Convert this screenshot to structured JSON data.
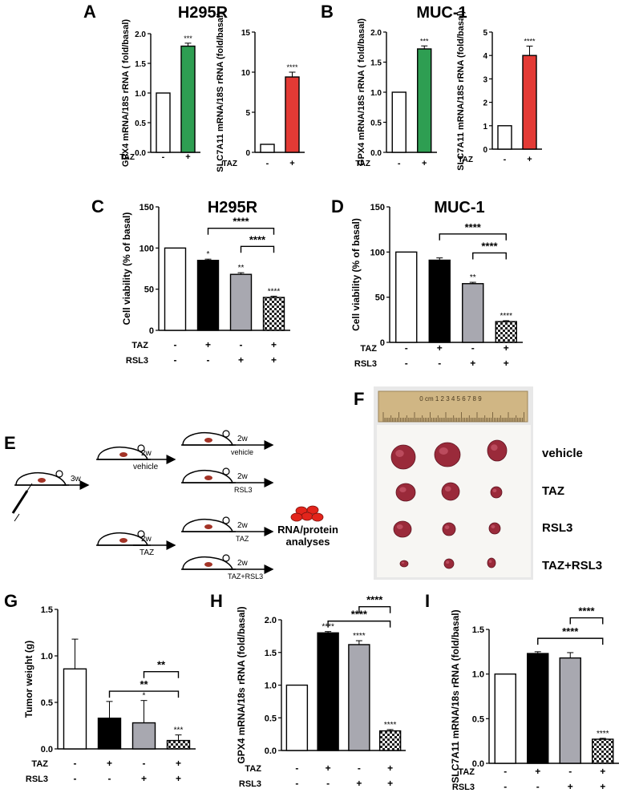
{
  "panels": {
    "A": {
      "letter": "A",
      "title": "H295R"
    },
    "B": {
      "letter": "B",
      "title": "MUC-1"
    },
    "C": {
      "letter": "C",
      "title": "H295R"
    },
    "D": {
      "letter": "D",
      "title": "MUC-1"
    },
    "E": {
      "letter": "E"
    },
    "F": {
      "letter": "F"
    },
    "G": {
      "letter": "G"
    },
    "H": {
      "letter": "H"
    },
    "I": {
      "letter": "I"
    }
  },
  "schematic": {
    "arrow_first": "3w",
    "rows": [
      {
        "duration": "2w",
        "treatment": "vehicle"
      },
      {
        "duration": "2w",
        "treatment": "RSL3"
      },
      {
        "duration": "2w",
        "treatment": "TAZ"
      },
      {
        "duration": "2w",
        "treatment": "TAZ+RSL3"
      }
    ],
    "pre_treatments": [
      {
        "duration": "2w",
        "treatment": "vehicle"
      },
      {
        "duration": "2w",
        "treatment": "TAZ"
      }
    ],
    "result_line1": "RNA/protein",
    "result_line2": "analyses",
    "colors": {
      "cells": "#e3241b",
      "tumor": "#a33326"
    }
  },
  "photo": {
    "ruler_label": "0 cm 1 2 3 4 5 6 7 8 9",
    "row_labels": [
      "vehicle",
      "TAZ",
      "RSL3",
      "TAZ+RSL3"
    ],
    "colors": {
      "background": "#e8e8e8",
      "cloth": "#f7f6f3",
      "ruler": "#d0b684",
      "tumor": "#9a2a3a"
    }
  },
  "legend_colors": {
    "white": "#ffffff",
    "black": "#000000",
    "gray": "#a8a8b0",
    "green": "#2e9e52",
    "red": "#e33a35"
  },
  "chart_data": [
    {
      "id": "A1",
      "type": "bar",
      "ylabel": "GPX4 mRNA/18S rRNA ( fold/basal)",
      "ylim": [
        0,
        2.0
      ],
      "yticks": [
        0.0,
        0.5,
        1.0,
        1.5,
        2.0
      ],
      "tick_decimals": 1,
      "row_labels": [
        "TAZ"
      ],
      "treatments": [
        [
          "-",
          "+"
        ]
      ],
      "values": [
        1.0,
        1.79
      ],
      "errors": [
        0,
        0.05
      ],
      "colors": [
        "white",
        "green"
      ],
      "sig": [
        "",
        "***"
      ],
      "brackets": []
    },
    {
      "id": "A2",
      "type": "bar",
      "ylabel": "SLC7A11 mRNA/18S rRNA (fold/basal)",
      "ylim": [
        0,
        15
      ],
      "yticks": [
        0,
        5,
        10,
        15
      ],
      "tick_decimals": 0,
      "row_labels": [
        "TAZ"
      ],
      "treatments": [
        [
          "-",
          "+"
        ]
      ],
      "values": [
        1.0,
        9.4
      ],
      "errors": [
        0,
        0.6
      ],
      "colors": [
        "white",
        "red"
      ],
      "sig": [
        "",
        "****"
      ],
      "brackets": []
    },
    {
      "id": "B1",
      "type": "bar",
      "ylabel": "GPX4 mRNA/18S rRNA ( fold/basal)",
      "ylim": [
        0,
        2.0
      ],
      "yticks": [
        0.0,
        0.5,
        1.0,
        1.5,
        2.0
      ],
      "tick_decimals": 1,
      "row_labels": [
        "TAZ"
      ],
      "treatments": [
        [
          "-",
          "+"
        ]
      ],
      "values": [
        1.0,
        1.72
      ],
      "errors": [
        0,
        0.05
      ],
      "colors": [
        "white",
        "green"
      ],
      "sig": [
        "",
        "***"
      ],
      "brackets": []
    },
    {
      "id": "B2",
      "type": "bar",
      "ylabel": "SLC7A11 mRNA/18S rRNA (fold/basal)",
      "ylim": [
        0,
        5
      ],
      "yticks": [
        0,
        1,
        2,
        3,
        4,
        5
      ],
      "tick_decimals": 0,
      "row_labels": [
        "TAZ"
      ],
      "treatments": [
        [
          "-",
          "+"
        ]
      ],
      "values": [
        1.0,
        4.0
      ],
      "errors": [
        0,
        0.4
      ],
      "colors": [
        "white",
        "red"
      ],
      "sig": [
        "",
        "****"
      ],
      "brackets": []
    },
    {
      "id": "C",
      "type": "bar",
      "ylabel": "Cell viability (% of basal)",
      "ylim": [
        0,
        150
      ],
      "yticks": [
        0,
        50,
        100,
        150
      ],
      "tick_decimals": 0,
      "row_labels": [
        "TAZ",
        "RSL3"
      ],
      "treatments": [
        [
          "-",
          "+",
          "-",
          "+"
        ],
        [
          "-",
          "-",
          "+",
          "+"
        ]
      ],
      "values": [
        100,
        85,
        68,
        40
      ],
      "errors": [
        0,
        1.5,
        2,
        1.5
      ],
      "colors": [
        "white",
        "black",
        "gray",
        "checker"
      ],
      "sig": [
        "",
        "*",
        "**",
        "****"
      ],
      "brackets": [
        {
          "from": 1,
          "to": 3,
          "label": "****",
          "level": 124
        },
        {
          "from": 2,
          "to": 3,
          "label": "****",
          "level": 102
        }
      ]
    },
    {
      "id": "D",
      "type": "bar",
      "ylabel": "Cell viability (% of basal)",
      "ylim": [
        0,
        150
      ],
      "yticks": [
        0,
        50,
        100,
        150
      ],
      "tick_decimals": 0,
      "row_labels": [
        "TAZ",
        "RSL3"
      ],
      "treatments": [
        [
          "-",
          "+",
          "-",
          "+"
        ],
        [
          "-",
          "-",
          "+",
          "+"
        ]
      ],
      "values": [
        100,
        91,
        65,
        23
      ],
      "errors": [
        0,
        2.5,
        1.5,
        1
      ],
      "colors": [
        "white",
        "black",
        "gray",
        "checker"
      ],
      "sig": [
        "",
        "",
        "**",
        "****"
      ],
      "brackets": [
        {
          "from": 1,
          "to": 3,
          "label": "****",
          "level": 120
        },
        {
          "from": 2,
          "to": 3,
          "label": "****",
          "level": 99
        }
      ]
    },
    {
      "id": "G",
      "type": "bar",
      "ylabel": "Tumor weight (g)",
      "ylim": [
        0,
        1.5
      ],
      "yticks": [
        0.0,
        0.5,
        1.0,
        1.5
      ],
      "tick_decimals": 1,
      "row_labels": [
        "TAZ",
        "RSL3"
      ],
      "treatments": [
        [
          "-",
          "+",
          "-",
          "+"
        ],
        [
          "-",
          "-",
          "+",
          "+"
        ]
      ],
      "values": [
        0.86,
        0.33,
        0.28,
        0.09
      ],
      "errors": [
        0.32,
        0.18,
        0.24,
        0.06
      ],
      "colors": [
        "white",
        "black",
        "gray",
        "checker"
      ],
      "sig": [
        "",
        "",
        "*",
        "***"
      ],
      "brackets": [
        {
          "from": 1,
          "to": 3,
          "label": "**",
          "level": 0.62
        },
        {
          "from": 2,
          "to": 3,
          "label": "**",
          "level": 0.83
        }
      ]
    },
    {
      "id": "H",
      "type": "bar",
      "ylabel": "GPX4 mRNA/18s rRNA (fold/basal)",
      "ylim": [
        0,
        2.0
      ],
      "yticks": [
        0.0,
        0.5,
        1.0,
        1.5,
        2.0
      ],
      "tick_decimals": 1,
      "row_labels": [
        "TAZ",
        "RSL3"
      ],
      "treatments": [
        [
          "-",
          "+",
          "-",
          "+"
        ],
        [
          "-",
          "-",
          "+",
          "+"
        ]
      ],
      "values": [
        1.0,
        1.8,
        1.62,
        0.3
      ],
      "errors": [
        0,
        0.02,
        0.06,
        0.02
      ],
      "colors": [
        "white",
        "black",
        "gray",
        "checker"
      ],
      "sig": [
        "",
        "****",
        "****",
        "****"
      ],
      "brackets": [
        {
          "from": 1,
          "to": 3,
          "label": "****",
          "level": 1.98
        },
        {
          "from": 2,
          "to": 3,
          "label": "****",
          "level": 2.2
        }
      ]
    },
    {
      "id": "I",
      "type": "bar",
      "ylabel": "SLC7A11 mRNA/18s rRNA (fold/basal)",
      "ylim": [
        0,
        1.5
      ],
      "yticks": [
        0.0,
        0.5,
        1.0,
        1.5
      ],
      "tick_decimals": 1,
      "row_labels": [
        "TAZ",
        "RSL3"
      ],
      "treatments": [
        [
          "-",
          "+",
          "-",
          "+"
        ],
        [
          "-",
          "-",
          "+",
          "+"
        ]
      ],
      "values": [
        1.0,
        1.23,
        1.18,
        0.27
      ],
      "errors": [
        0,
        0.02,
        0.06,
        0.01
      ],
      "colors": [
        "white",
        "black",
        "gray",
        "checker"
      ],
      "sig": [
        "",
        "",
        "",
        "****"
      ],
      "brackets": [
        {
          "from": 1,
          "to": 3,
          "label": "****",
          "level": 1.4
        },
        {
          "from": 2,
          "to": 3,
          "label": "****",
          "level": 1.63
        }
      ]
    }
  ]
}
